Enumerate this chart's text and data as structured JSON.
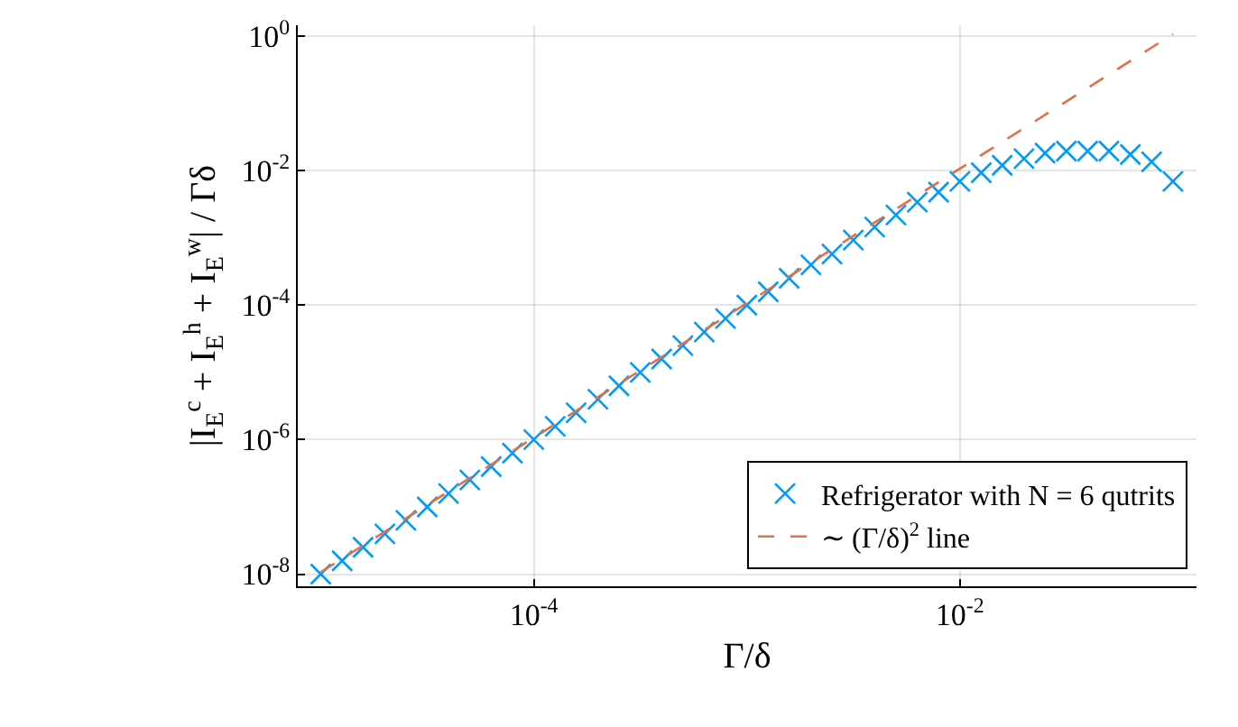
{
  "chart_data": {
    "type": "scatter",
    "xlabel": "Γ/δ",
    "ylabel": "|I$_{E}$$^{c}$ + I$_{E}$$^{h}$ + I$_{E}$$^{w}$| / Γδ",
    "log": "xy",
    "grid": true,
    "legend": "bottom right",
    "xlim": [
      7.8e-06,
      0.129
    ],
    "ylim": [
      6.6e-09,
      1.45
    ],
    "xticks": [
      {
        "value": 0.0001,
        "label": "10$^{-4}$"
      },
      {
        "value": 0.01,
        "label": "10$^{-2}$"
      }
    ],
    "yticks": [
      {
        "value": 1e-08,
        "label": "10$^{-8}$"
      },
      {
        "value": 1e-06,
        "label": "10$^{-6}$"
      },
      {
        "value": 0.0001,
        "label": "10$^{-4}$"
      },
      {
        "value": 0.01,
        "label": "10$^{-2}$"
      },
      {
        "value": 1,
        "label": "10$^{0}$"
      }
    ],
    "series": [
      {
        "name": "Refrigerator with N = 6 qutrits",
        "marker": "cross",
        "color": "#009af9",
        "x": [
          1e-05,
          1.26e-05,
          1.58e-05,
          2e-05,
          2.51e-05,
          3.16e-05,
          3.98e-05,
          5.01e-05,
          6.31e-05,
          7.94e-05,
          0.0001,
          0.000126,
          0.000158,
          0.0002,
          0.000251,
          0.000316,
          0.000398,
          0.000501,
          0.000631,
          0.000794,
          0.001,
          0.00126,
          0.00158,
          0.002,
          0.00251,
          0.00316,
          0.00398,
          0.00501,
          0.00631,
          0.00794,
          0.01,
          0.0126,
          0.0158,
          0.02,
          0.0251,
          0.0316,
          0.0398,
          0.0501,
          0.0631,
          0.0794,
          0.1
        ],
        "values": [
          1e-08,
          1.58e-08,
          2.51e-08,
          3.98e-08,
          6.31e-08,
          1e-07,
          1.58e-07,
          2.51e-07,
          3.98e-07,
          6.31e-07,
          1e-06,
          1.58e-06,
          2.51e-06,
          3.98e-06,
          6.31e-06,
          1e-05,
          1.58e-05,
          2.51e-05,
          3.98e-05,
          6.31e-05,
          0.0001,
          0.000158,
          0.000251,
          0.000398,
          0.000575,
          0.00093,
          0.00145,
          0.00219,
          0.00339,
          0.00479,
          0.0069,
          0.0093,
          0.012,
          0.0151,
          0.0182,
          0.0195,
          0.0195,
          0.0195,
          0.0174,
          0.0135,
          0.0069
        ]
      },
      {
        "name": "∼ (Γ/δ)$^{2}$ line",
        "type": "line",
        "marker": "none",
        "line_style": "dashed",
        "color": "#e26f46",
        "x": [
          1e-05,
          0.1
        ],
        "values": [
          1.07e-08,
          1.07
        ]
      }
    ]
  }
}
